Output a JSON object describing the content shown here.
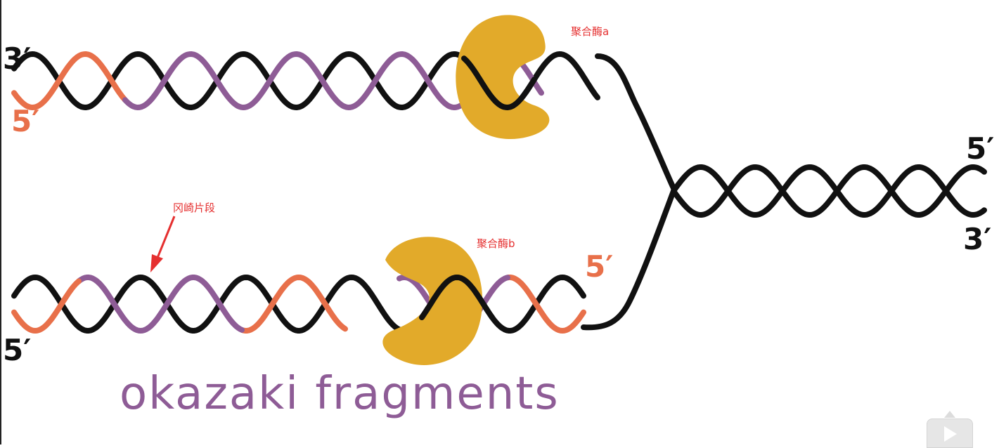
{
  "labels": {
    "top_3prime": "3′",
    "top_5prime": "5′",
    "right_5prime": "5′",
    "right_3prime": "3′",
    "bottom_left_5prime": "5′",
    "bottom_primer_5prime": "5′"
  },
  "annotations": {
    "polymerase_a": "聚合酶a",
    "polymerase_b": "聚合酶b",
    "okazaki_fragment": "冈崎片段"
  },
  "caption": "okazaki fragments",
  "colors": {
    "template_strand": "#111111",
    "rna_primer": "#e8704a",
    "new_dna": "#8e5c96",
    "polymerase": "#e2aa2a",
    "annotation": "#e53030"
  },
  "controls": {
    "play_icon": "play-icon"
  }
}
